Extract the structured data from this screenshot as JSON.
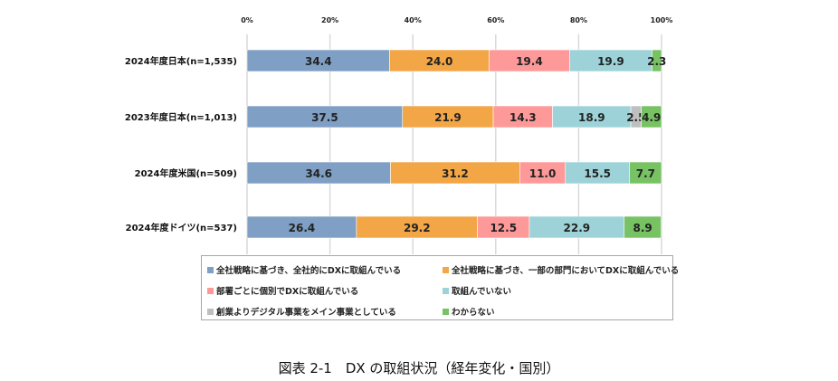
{
  "chart_data": {
    "type": "bar",
    "orientation": "horizontal",
    "stacked": true,
    "categories": [
      "2024年度日本(n=1,535)",
      "2023年度日本(n=1,013)",
      "2024年度米国(n=509)",
      "2024年度ドイツ(n=537)"
    ],
    "xlim": [
      0,
      100
    ],
    "x_ticks": [
      "0%",
      "20%",
      "40%",
      "60%",
      "80%",
      "100%"
    ],
    "grid": true,
    "legend_position": "bottom",
    "series": [
      {
        "name": "全社戦略に基づき、全社的にDXに取組んでいる",
        "color": "#7f9fc4",
        "values": [
          34.4,
          37.5,
          34.6,
          26.4
        ]
      },
      {
        "name": "全社戦略に基づき、一部の部門においてDXに取組んでいる",
        "color": "#f3a646",
        "values": [
          24.0,
          21.9,
          31.2,
          29.2
        ]
      },
      {
        "name": "部署ごとに個別でDXに取組んでいる",
        "color": "#fe9999",
        "values": [
          19.4,
          14.3,
          11.0,
          12.5
        ]
      },
      {
        "name": "取組んでいない",
        "color": "#9dd3d8",
        "values": [
          19.9,
          18.9,
          15.5,
          22.9
        ]
      },
      {
        "name": "創業よりデジタル事業をメイン事業としている",
        "color": "#bfbfbf",
        "values": [
          0,
          2.5,
          0,
          0
        ]
      },
      {
        "name": "わからない",
        "color": "#77c263",
        "values": [
          2.3,
          4.9,
          7.7,
          8.9
        ]
      }
    ],
    "title": "図表 2-1　DX の取組状況（経年変化・国別）"
  }
}
